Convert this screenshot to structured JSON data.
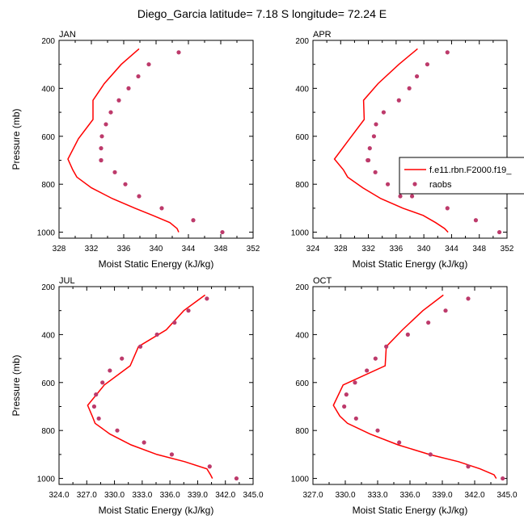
{
  "figure_title": "Diego_Garcia  latitude= 7.18 S longitude= 72.24 E",
  "legend": {
    "model_label": "f.e11.rbn.F2000.f19_",
    "obs_label": "raobs",
    "model_color": "#ff0000",
    "obs_color": "#bd3a6b"
  },
  "chart_data": [
    {
      "type": "line",
      "panel": "JAN",
      "title": "JAN",
      "xlabel": "Moist Static Energy (kJ/kg)",
      "ylabel": "Pressure (mb)",
      "xlim": [
        328,
        352
      ],
      "ylim": [
        1025,
        200
      ],
      "xticks": [
        328,
        332,
        336,
        340,
        344,
        348,
        352
      ],
      "xtick_labels": [
        "328",
        "332",
        "336",
        "340",
        "344",
        "348",
        "352"
      ],
      "yticks": [
        200,
        400,
        600,
        800,
        1000
      ],
      "ytick_labels": [
        "200",
        "400",
        "600",
        "800",
        "1000"
      ],
      "series": [
        {
          "name": "f.e11.rbn.F2000.f19_",
          "kind": "line",
          "x": [
            337.9,
            335.7,
            333.6,
            332.2,
            332.2,
            330.4,
            329.1,
            329.7,
            330.2,
            332.0,
            334.6,
            337.4,
            339.6,
            341.7,
            342.6,
            342.8
          ],
          "y": [
            235,
            300,
            380,
            450,
            530,
            610,
            695,
            740,
            770,
            815,
            860,
            900,
            930,
            960,
            985,
            1000
          ]
        },
        {
          "name": "raobs",
          "kind": "scatter",
          "x": [
            342.8,
            339.1,
            337.8,
            336.6,
            335.4,
            334.4,
            333.8,
            333.3,
            333.2,
            333.2,
            333.2,
            334.9,
            336.2,
            337.9,
            340.7,
            344.6,
            348.2
          ],
          "y": [
            250,
            300,
            350,
            400,
            450,
            500,
            550,
            600,
            650,
            700,
            700,
            750,
            800,
            850,
            900,
            950,
            1000
          ]
        }
      ]
    },
    {
      "type": "line",
      "panel": "APR",
      "title": "APR",
      "xlabel": "Moist Static Energy (kJ/kg)",
      "ylabel": "",
      "xlim": [
        324,
        352
      ],
      "ylim": [
        1025,
        200
      ],
      "xticks": [
        324,
        328,
        332,
        336,
        340,
        344,
        348,
        352
      ],
      "xtick_labels": [
        "324",
        "328",
        "332",
        "336",
        "340",
        "344",
        "348",
        "352"
      ],
      "yticks": [
        200,
        400,
        600,
        800,
        1000
      ],
      "ytick_labels": [
        "200",
        "400",
        "600",
        "800",
        "1000"
      ],
      "series": [
        {
          "name": "f.e11.rbn.F2000.f19_",
          "kind": "line",
          "x": [
            339.1,
            336.4,
            333.4,
            331.3,
            331.4,
            329.3,
            327.1,
            328.4,
            329.0,
            331.2,
            333.8,
            337.0,
            339.9,
            341.7,
            343.0,
            343.5
          ],
          "y": [
            235,
            300,
            380,
            450,
            530,
            610,
            695,
            740,
            770,
            815,
            860,
            900,
            930,
            960,
            985,
            1000
          ]
        },
        {
          "name": "raobs",
          "kind": "scatter",
          "x": [
            343.4,
            340.5,
            339.0,
            337.9,
            336.4,
            334.2,
            333.1,
            332.8,
            332.2,
            332.0,
            331.9,
            333.0,
            334.8,
            336.6,
            338.3,
            343.4,
            347.5,
            350.9
          ],
          "y": [
            250,
            300,
            350,
            400,
            450,
            500,
            550,
            600,
            650,
            700,
            700,
            750,
            800,
            850,
            850,
            900,
            950,
            1000
          ]
        }
      ]
    },
    {
      "type": "line",
      "panel": "JUL",
      "title": "JUL",
      "xlabel": "Moist Static Energy (kJ/kg)",
      "ylabel": "Pressure (mb)",
      "xlim": [
        324,
        345
      ],
      "ylim": [
        1025,
        200
      ],
      "xticks": [
        324,
        327,
        330,
        333,
        336,
        339,
        342,
        345
      ],
      "xtick_labels": [
        "324.0",
        "327.0",
        "330.0",
        "333.0",
        "336.0",
        "339.0",
        "342.0",
        "345.0"
      ],
      "yticks": [
        200,
        400,
        600,
        800,
        1000
      ],
      "ytick_labels": [
        "200",
        "400",
        "600",
        "800",
        "1000"
      ],
      "series": [
        {
          "name": "f.e11.rbn.F2000.f19_",
          "kind": "line",
          "x": [
            339.8,
            337.5,
            335.6,
            332.6,
            331.7,
            328.9,
            327.1,
            327.6,
            327.9,
            329.5,
            331.8,
            334.6,
            337.6,
            340.0,
            340.4,
            340.6
          ],
          "y": [
            235,
            300,
            380,
            450,
            530,
            610,
            695,
            740,
            770,
            815,
            860,
            900,
            930,
            960,
            985,
            1000
          ]
        },
        {
          "name": "raobs",
          "kind": "scatter",
          "x": [
            340.0,
            338.0,
            336.5,
            334.6,
            332.8,
            330.8,
            329.5,
            328.7,
            328.0,
            327.8,
            328.3,
            330.3,
            333.2,
            336.2,
            340.3,
            343.2
          ],
          "y": [
            250,
            300,
            350,
            400,
            450,
            500,
            550,
            600,
            650,
            700,
            750,
            800,
            850,
            900,
            950,
            1000
          ]
        }
      ]
    },
    {
      "type": "line",
      "panel": "OCT",
      "title": "OCT",
      "xlabel": "Moist Static Energy (kJ/kg)",
      "ylabel": "",
      "xlim": [
        327,
        345
      ],
      "ylim": [
        1025,
        200
      ],
      "xticks": [
        327,
        330,
        333,
        336,
        339,
        342,
        345
      ],
      "xtick_labels": [
        "327.0",
        "330.0",
        "333.0",
        "336.0",
        "339.0",
        "342.0",
        "345.0"
      ],
      "yticks": [
        200,
        400,
        600,
        800,
        1000
      ],
      "ytick_labels": [
        "200",
        "400",
        "600",
        "800",
        "1000"
      ],
      "series": [
        {
          "name": "f.e11.rbn.F2000.f19_",
          "kind": "line",
          "x": [
            339.1,
            337.2,
            335.3,
            333.8,
            333.7,
            329.8,
            328.9,
            329.5,
            330.2,
            332.3,
            334.9,
            337.8,
            340.5,
            342.5,
            343.8,
            344.0
          ],
          "y": [
            235,
            300,
            380,
            450,
            530,
            610,
            695,
            740,
            770,
            815,
            860,
            900,
            930,
            960,
            985,
            1000
          ]
        },
        {
          "name": "raobs",
          "kind": "scatter",
          "x": [
            341.4,
            339.3,
            337.7,
            335.8,
            333.8,
            332.8,
            332.0,
            330.9,
            330.1,
            329.9,
            331.0,
            333.0,
            335.0,
            337.9,
            341.4,
            344.6
          ],
          "y": [
            250,
            300,
            350,
            400,
            450,
            500,
            550,
            600,
            650,
            700,
            750,
            800,
            850,
            900,
            950,
            1000
          ]
        }
      ]
    }
  ]
}
